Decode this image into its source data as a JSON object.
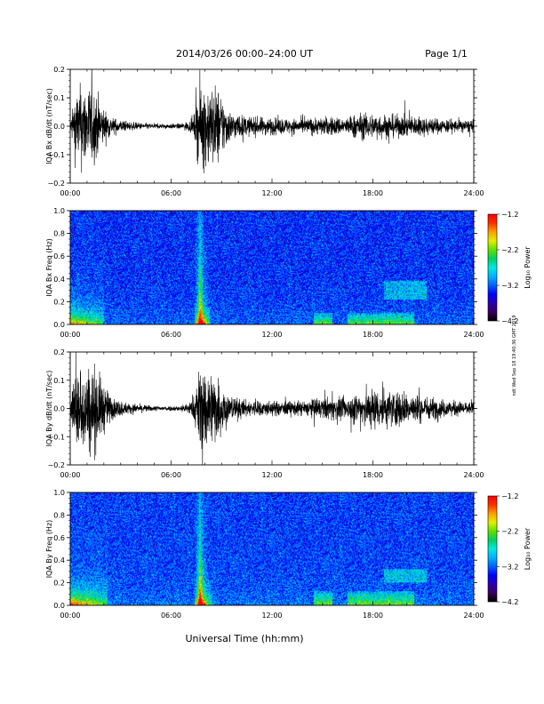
{
  "header": {
    "title": "2014/03/26  00:00–24:00 UT",
    "page": "Page 1/1"
  },
  "side_stamp": "ndt Wed Sep 18 19:40:36 GMT 2019",
  "x_axis": {
    "title": "Universal Time (hh:mm)",
    "tick_labels": [
      "00:00",
      "06:00",
      "12:00",
      "18:00",
      "24:00"
    ],
    "range_hours": [
      0,
      24
    ]
  },
  "chart_data": [
    {
      "type": "line",
      "ylabel": "IQA Bx dB/dt (nT/sec)",
      "ylim": [
        -0.2,
        0.2
      ],
      "y_ticks": [
        -0.2,
        -0.1,
        0.0,
        0.1,
        0.2
      ],
      "y_tick_labels": [
        "−0.2",
        "−0.1",
        "0.0",
        "0.1",
        "0.2"
      ],
      "xlim": [
        0,
        24
      ],
      "series_color": "#000000",
      "activity_envelope": {
        "x_hours": [
          0,
          0.3,
          0.7,
          1.0,
          1.5,
          2.0,
          2.5,
          3.5,
          5.0,
          6.5,
          7.3,
          7.7,
          8.2,
          8.8,
          9.5,
          10.5,
          12.0,
          13.5,
          14.5,
          15.5,
          16.5,
          17.0,
          18.0,
          19.0,
          20.0,
          21.0,
          22.0,
          23.0,
          24.0
        ],
        "amplitude": [
          0.02,
          0.16,
          0.2,
          0.2,
          0.17,
          0.08,
          0.04,
          0.02,
          0.012,
          0.012,
          0.03,
          0.2,
          0.2,
          0.18,
          0.07,
          0.045,
          0.04,
          0.035,
          0.04,
          0.045,
          0.04,
          0.06,
          0.06,
          0.055,
          0.05,
          0.045,
          0.035,
          0.03,
          0.03
        ]
      }
    },
    {
      "type": "heatmap",
      "ylabel": "IQA Bx Freq (Hz)",
      "ylim": [
        0.0,
        1.0
      ],
      "y_ticks": [
        0.0,
        0.2,
        0.4,
        0.6,
        0.8,
        1.0
      ],
      "y_tick_labels": [
        "0.0",
        "0.2",
        "0.4",
        "0.6",
        "0.8",
        "1.0"
      ],
      "xlim": [
        0,
        24
      ],
      "colorbar": {
        "label": "Log₁₀ Power",
        "range": [
          -4.2,
          -1.2
        ],
        "ticks": [
          -4.2,
          -3.2,
          -2.2,
          -1.2
        ],
        "tick_labels": [
          "−4.2",
          "−3.2",
          "−2.2",
          "−1.2"
        ]
      },
      "background_level": -3.35,
      "features": [
        {
          "kind": "broadband",
          "x_hours": [
            0.0,
            2.0
          ],
          "low_freq_boost": 1.4
        },
        {
          "kind": "spike",
          "x_hours": [
            7.4,
            8.3
          ],
          "peak_hours": 7.7
        },
        {
          "kind": "band",
          "x_hours": [
            14.5,
            15.6
          ],
          "freq_hz": [
            0.0,
            0.1
          ]
        },
        {
          "kind": "band",
          "x_hours": [
            16.5,
            20.5
          ],
          "freq_hz": [
            0.0,
            0.1
          ]
        },
        {
          "kind": "patch",
          "x_hours": [
            18.7,
            21.2
          ],
          "freq_hz": [
            0.22,
            0.38
          ]
        }
      ]
    },
    {
      "type": "line",
      "ylabel": "IQA By dB/dt (nT/sec)",
      "ylim": [
        -0.2,
        0.2
      ],
      "y_ticks": [
        -0.2,
        -0.1,
        0.0,
        0.1,
        0.2
      ],
      "y_tick_labels": [
        "−0.2",
        "−0.1",
        "0.0",
        "0.1",
        "0.2"
      ],
      "xlim": [
        0,
        24
      ],
      "series_color": "#000000",
      "activity_envelope": {
        "x_hours": [
          0,
          0.3,
          0.7,
          1.0,
          1.5,
          2.0,
          2.5,
          3.5,
          5.0,
          6.5,
          7.3,
          7.7,
          8.2,
          8.8,
          9.5,
          10.5,
          12.0,
          13.5,
          14.5,
          15.5,
          16.5,
          17.0,
          18.0,
          19.0,
          20.0,
          21.0,
          22.0,
          23.0,
          24.0
        ],
        "amplitude": [
          0.03,
          0.2,
          0.2,
          0.2,
          0.2,
          0.12,
          0.05,
          0.025,
          0.012,
          0.012,
          0.04,
          0.2,
          0.2,
          0.15,
          0.06,
          0.04,
          0.035,
          0.035,
          0.045,
          0.055,
          0.05,
          0.08,
          0.1,
          0.09,
          0.08,
          0.06,
          0.045,
          0.035,
          0.03
        ]
      }
    },
    {
      "type": "heatmap",
      "ylabel": "IQA By Freq (Hz)",
      "ylim": [
        0.0,
        1.0
      ],
      "y_ticks": [
        0.0,
        0.2,
        0.4,
        0.6,
        0.8,
        1.0
      ],
      "y_tick_labels": [
        "0.0",
        "0.2",
        "0.4",
        "0.6",
        "0.8",
        "1.0"
      ],
      "xlim": [
        0,
        24
      ],
      "colorbar": {
        "label": "Log₁₀ Power",
        "range": [
          -4.2,
          -1.2
        ],
        "ticks": [
          -4.2,
          -3.2,
          -2.2,
          -1.2
        ],
        "tick_labels": [
          "−4.2",
          "−3.2",
          "−2.2",
          "−1.2"
        ]
      },
      "background_level": -3.3,
      "features": [
        {
          "kind": "broadband",
          "x_hours": [
            0.0,
            2.2
          ],
          "low_freq_boost": 1.6
        },
        {
          "kind": "spike",
          "x_hours": [
            7.4,
            8.5
          ],
          "peak_hours": 7.7
        },
        {
          "kind": "band",
          "x_hours": [
            14.5,
            15.6
          ],
          "freq_hz": [
            0.0,
            0.12
          ]
        },
        {
          "kind": "band",
          "x_hours": [
            16.5,
            20.5
          ],
          "freq_hz": [
            0.0,
            0.12
          ]
        },
        {
          "kind": "patch",
          "x_hours": [
            18.7,
            21.2
          ],
          "freq_hz": [
            0.2,
            0.32
          ]
        }
      ]
    }
  ],
  "colors": {
    "colormap": [
      "#000000",
      "#3a0060",
      "#2a00b0",
      "#0000ff",
      "#0060ff",
      "#00b0ff",
      "#00e8e0",
      "#00d060",
      "#60e000",
      "#e0f000",
      "#ffa000",
      "#ff3000",
      "#ff0000"
    ]
  }
}
